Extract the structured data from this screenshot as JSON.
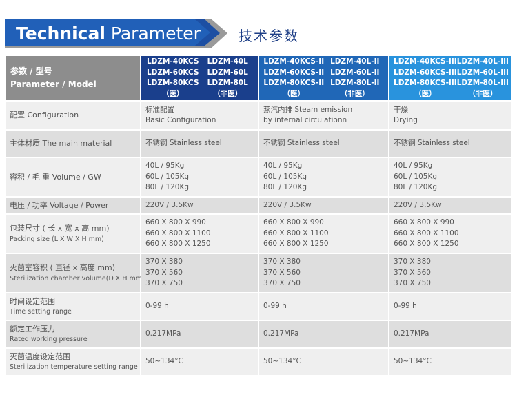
{
  "header": {
    "title_bold": "Technical",
    "title_light": "Parameter",
    "subtitle": "技术参数"
  },
  "table": {
    "head_cn": "参数 / 型号",
    "head_en": "Parameter / Model",
    "column_colors": [
      "#1a3f8c",
      "#2067b7",
      "#2993dd"
    ],
    "columns": [
      {
        "models": [
          "LDZM-40KCS",
          "LDZM-40L",
          "LDZM-60KCS",
          "LDZM-60L",
          "LDZM-80KCS",
          "LDZM-80L",
          "（医）",
          "（非医）"
        ]
      },
      {
        "models": [
          "LDZM-40KCS-II",
          "LDZM-40L-II",
          "LDZM-60KCS-II",
          "LDZM-60L-II",
          "LDZM-80KCS-II",
          "LDZM-80L-II",
          "（医）",
          "（非医）"
        ]
      },
      {
        "models": [
          "LDZM-40KCS-III",
          "LDZM-40L-III",
          "LDZM-60KCS-III",
          "LDZM-60L-III",
          "LDZM-80KCS-III",
          "LDZM-80L-III",
          "（医）",
          "（非医）"
        ]
      }
    ],
    "rows": [
      {
        "label": [
          "配置 Configuration"
        ],
        "values": [
          [
            "标准配置",
            "Basic Configuration"
          ],
          [
            "蒸汽内排 Steam emission",
            "by internal circulationn"
          ],
          [
            "干燥",
            "Drying"
          ]
        ]
      },
      {
        "label": [
          "主体材质  The main material"
        ],
        "values": [
          [
            "不锈钢 Stainless steel"
          ],
          [
            "不锈钢 Stainless steel"
          ],
          [
            "不锈钢 Stainless steel"
          ]
        ]
      },
      {
        "label": [
          "容积 / 毛 重  Volume / GW"
        ],
        "values": [
          [
            "40L / 95Kg",
            "60L / 105Kg",
            "80L / 120Kg"
          ],
          [
            "40L / 95Kg",
            "60L / 105Kg",
            "80L / 120Kg"
          ],
          [
            "40L / 95Kg",
            "60L / 105Kg",
            "80L / 120Kg"
          ]
        ]
      },
      {
        "label": [
          "电压 / 功率  Voltage / Power"
        ],
        "values": [
          [
            "220V / 3.5Kw"
          ],
          [
            "220V / 3.5Kw"
          ],
          [
            "220V / 3.5Kw"
          ]
        ]
      },
      {
        "label": [
          "包装尺寸 ( 长 x 宽 x 高 mm)",
          "Packing size (L X W X H mm)"
        ],
        "values": [
          [
            "660 X 800 X 990",
            "660 X 800 X 1100",
            "660 X 800 X 1250"
          ],
          [
            "660 X 800 X 990",
            "660 X 800 X 1100",
            "660 X 800 X 1250"
          ],
          [
            "660 X 800 X 990",
            "660 X 800 X 1100",
            "660 X 800 X 1250"
          ]
        ]
      },
      {
        "label": [
          "灭菌室容积 ( 直径 x 高度 mm)",
          "Sterilization chamber volume(D X H mm)"
        ],
        "values": [
          [
            "370 X 380",
            "370 X 560",
            "370 X 750"
          ],
          [
            "370 X 380",
            "370 X 560",
            "370 X 750"
          ],
          [
            "370 X 380",
            "370 X 560",
            "370 X 750"
          ]
        ]
      },
      {
        "label": [
          "时间设定范围",
          "Time setting range"
        ],
        "values": [
          [
            "0-99 h"
          ],
          [
            "0-99 h"
          ],
          [
            "0-99 h"
          ]
        ]
      },
      {
        "label": [
          "额定工作压力",
          "Rated working pressure"
        ],
        "values": [
          [
            "0.217MPa"
          ],
          [
            "0.217MPa"
          ],
          [
            "0.217MPa"
          ]
        ]
      },
      {
        "label": [
          "灭菌温度设定范围",
          "Sterilization temperature setting range"
        ],
        "values": [
          [
            "50~134°C"
          ],
          [
            "50~134°C"
          ],
          [
            "50~134°C"
          ]
        ]
      }
    ]
  }
}
